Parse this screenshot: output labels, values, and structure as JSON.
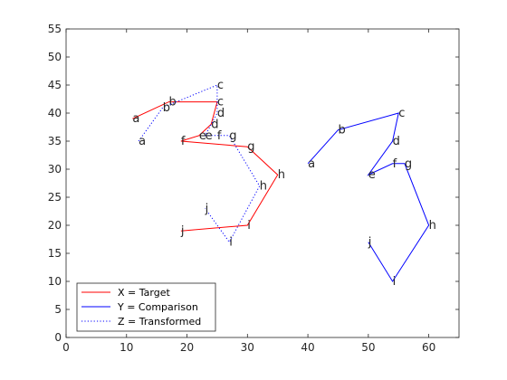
{
  "chart_data": {
    "type": "line",
    "title": "",
    "xlabel": "",
    "ylabel": "",
    "xlim": [
      0,
      65
    ],
    "ylim": [
      0,
      55
    ],
    "xticks": [
      0,
      10,
      20,
      30,
      40,
      50,
      60
    ],
    "yticks": [
      0,
      5,
      10,
      15,
      20,
      25,
      30,
      35,
      40,
      45,
      50,
      55
    ],
    "grid": false,
    "legend": "bottom-left",
    "series": [
      {
        "name": "X = Target",
        "color": "#ff0000",
        "style": "solid",
        "labels": [
          "a",
          "b",
          "c",
          "d",
          "e",
          "f",
          "g",
          "h",
          "i",
          "j"
        ],
        "x": [
          11,
          17,
          25,
          24,
          22,
          19,
          30,
          35,
          30,
          19
        ],
        "y": [
          39,
          42,
          42,
          38,
          36,
          35,
          34,
          29,
          20,
          19
        ]
      },
      {
        "name": "Y = Comparison",
        "color": "#0000ff",
        "style": "solid",
        "labels": [
          "a",
          "b",
          "c",
          "d",
          "e",
          "f",
          "g",
          "h",
          "i",
          "j"
        ],
        "x": [
          40,
          45,
          55,
          54,
          50,
          54,
          56,
          60,
          54,
          50
        ],
        "y": [
          31,
          37,
          40,
          35,
          29,
          31,
          31,
          20,
          10,
          17
        ]
      },
      {
        "name": "Z = Transformed",
        "color": "#0000ff",
        "style": "dotted",
        "labels": [
          "a",
          "b",
          "c",
          "d",
          "e",
          "f",
          "g",
          "h",
          "i",
          "j"
        ],
        "x": [
          12,
          16,
          25,
          25,
          23,
          25,
          27,
          32,
          27,
          23
        ],
        "y": [
          35,
          41,
          45,
          40,
          36,
          36,
          36,
          27,
          17,
          23
        ]
      }
    ]
  }
}
